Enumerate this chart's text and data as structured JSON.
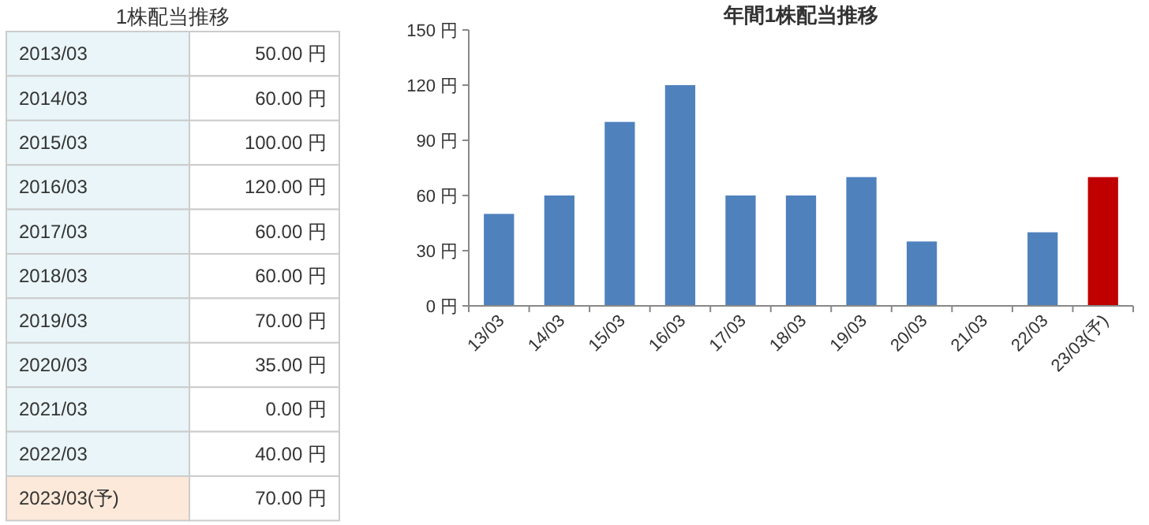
{
  "chart_data": [
    {
      "type": "other",
      "title": "1株配当推移",
      "categories": [
        "2013/03",
        "2014/03",
        "2015/03",
        "2016/03",
        "2017/03",
        "2018/03",
        "2019/03",
        "2020/03",
        "2021/03",
        "2022/03",
        "2023/03(予)"
      ],
      "value_labels": [
        "50.00 円",
        "60.00 円",
        "100.00 円",
        "120.00 円",
        "60.00 円",
        "60.00 円",
        "70.00 円",
        "35.00 円",
        "0.00 円",
        "40.00 円",
        "70.00 円"
      ],
      "colors": [
        "#e9f5f8",
        "#e9f5f8",
        "#e9f5f8",
        "#e9f5f8",
        "#e9f5f8",
        "#e9f5f8",
        "#e9f5f8",
        "#e9f5f8",
        "#e9f5f8",
        "#e9f5f8",
        "#fde9d9"
      ]
    },
    {
      "type": "bar",
      "title": "年間1株配当推移",
      "categories": [
        "13/03",
        "14/03",
        "15/03",
        "16/03",
        "17/03",
        "18/03",
        "19/03",
        "20/03",
        "21/03",
        "22/03",
        "23/03(予)"
      ],
      "values": [
        50,
        60,
        100,
        120,
        60,
        60,
        70,
        35,
        0,
        40,
        70
      ],
      "colors": [
        "#4f81bd",
        "#4f81bd",
        "#4f81bd",
        "#4f81bd",
        "#4f81bd",
        "#4f81bd",
        "#4f81bd",
        "#4f81bd",
        "#4f81bd",
        "#4f81bd",
        "#c00000"
      ],
      "ylim": [
        0,
        150
      ],
      "yticks": [
        {
          "value": 0,
          "label": "0 円"
        },
        {
          "value": 30,
          "label": "30 円"
        },
        {
          "value": 60,
          "label": "60 円"
        },
        {
          "value": 90,
          "label": "90 円"
        },
        {
          "value": 120,
          "label": "120 円"
        },
        {
          "value": 150,
          "label": "150 円"
        }
      ]
    }
  ]
}
